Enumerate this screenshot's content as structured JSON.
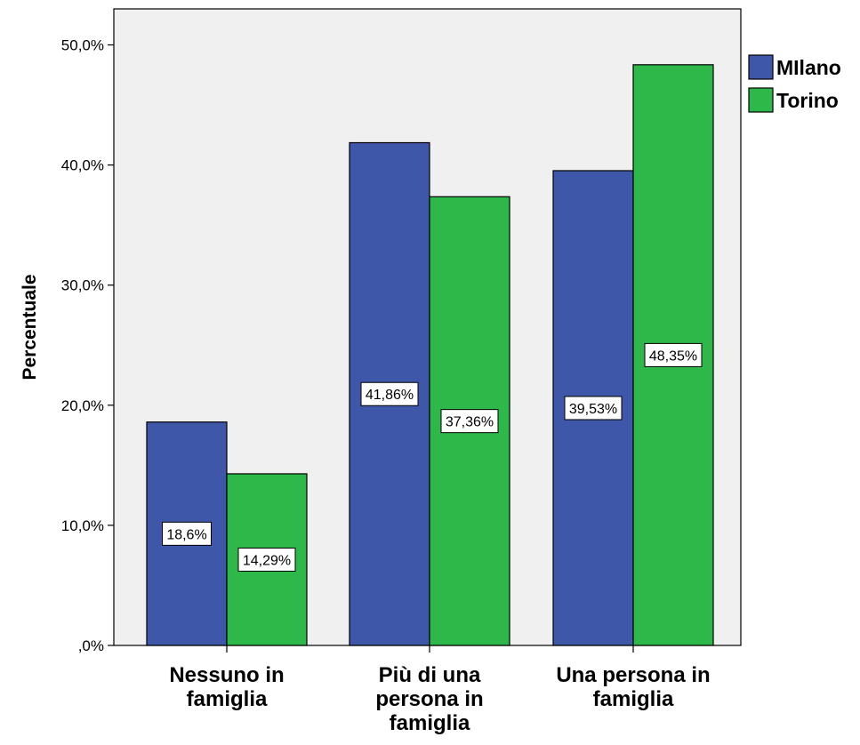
{
  "chart_data": {
    "type": "bar",
    "title": "",
    "xlabel": "",
    "ylabel": "Percentuale",
    "categories": [
      [
        "Nessuno in",
        "famiglia"
      ],
      [
        "Più di una",
        "persona in",
        "famiglia"
      ],
      [
        "Una persona in",
        "famiglia"
      ]
    ],
    "series": [
      {
        "name": "MIlano",
        "color": "#3F57A8",
        "values": [
          18.6,
          41.86,
          39.53
        ],
        "labels": [
          "18,6%",
          "41,86%",
          "39,53%"
        ]
      },
      {
        "name": "Torino",
        "color": "#2EB84A",
        "values": [
          14.29,
          37.36,
          48.35
        ],
        "labels": [
          "14,29%",
          "37,36%",
          "48,35%"
        ]
      }
    ],
    "ylim": [
      0,
      53
    ],
    "yticks": [
      0,
      10,
      20,
      30,
      40,
      50
    ],
    "ytick_labels": [
      ",0%",
      "10,0%",
      "20,0%",
      "30,0%",
      "40,0%",
      "50,0%"
    ],
    "grid": false,
    "plot_background": "#F0F0F0",
    "legend_position": "right"
  }
}
